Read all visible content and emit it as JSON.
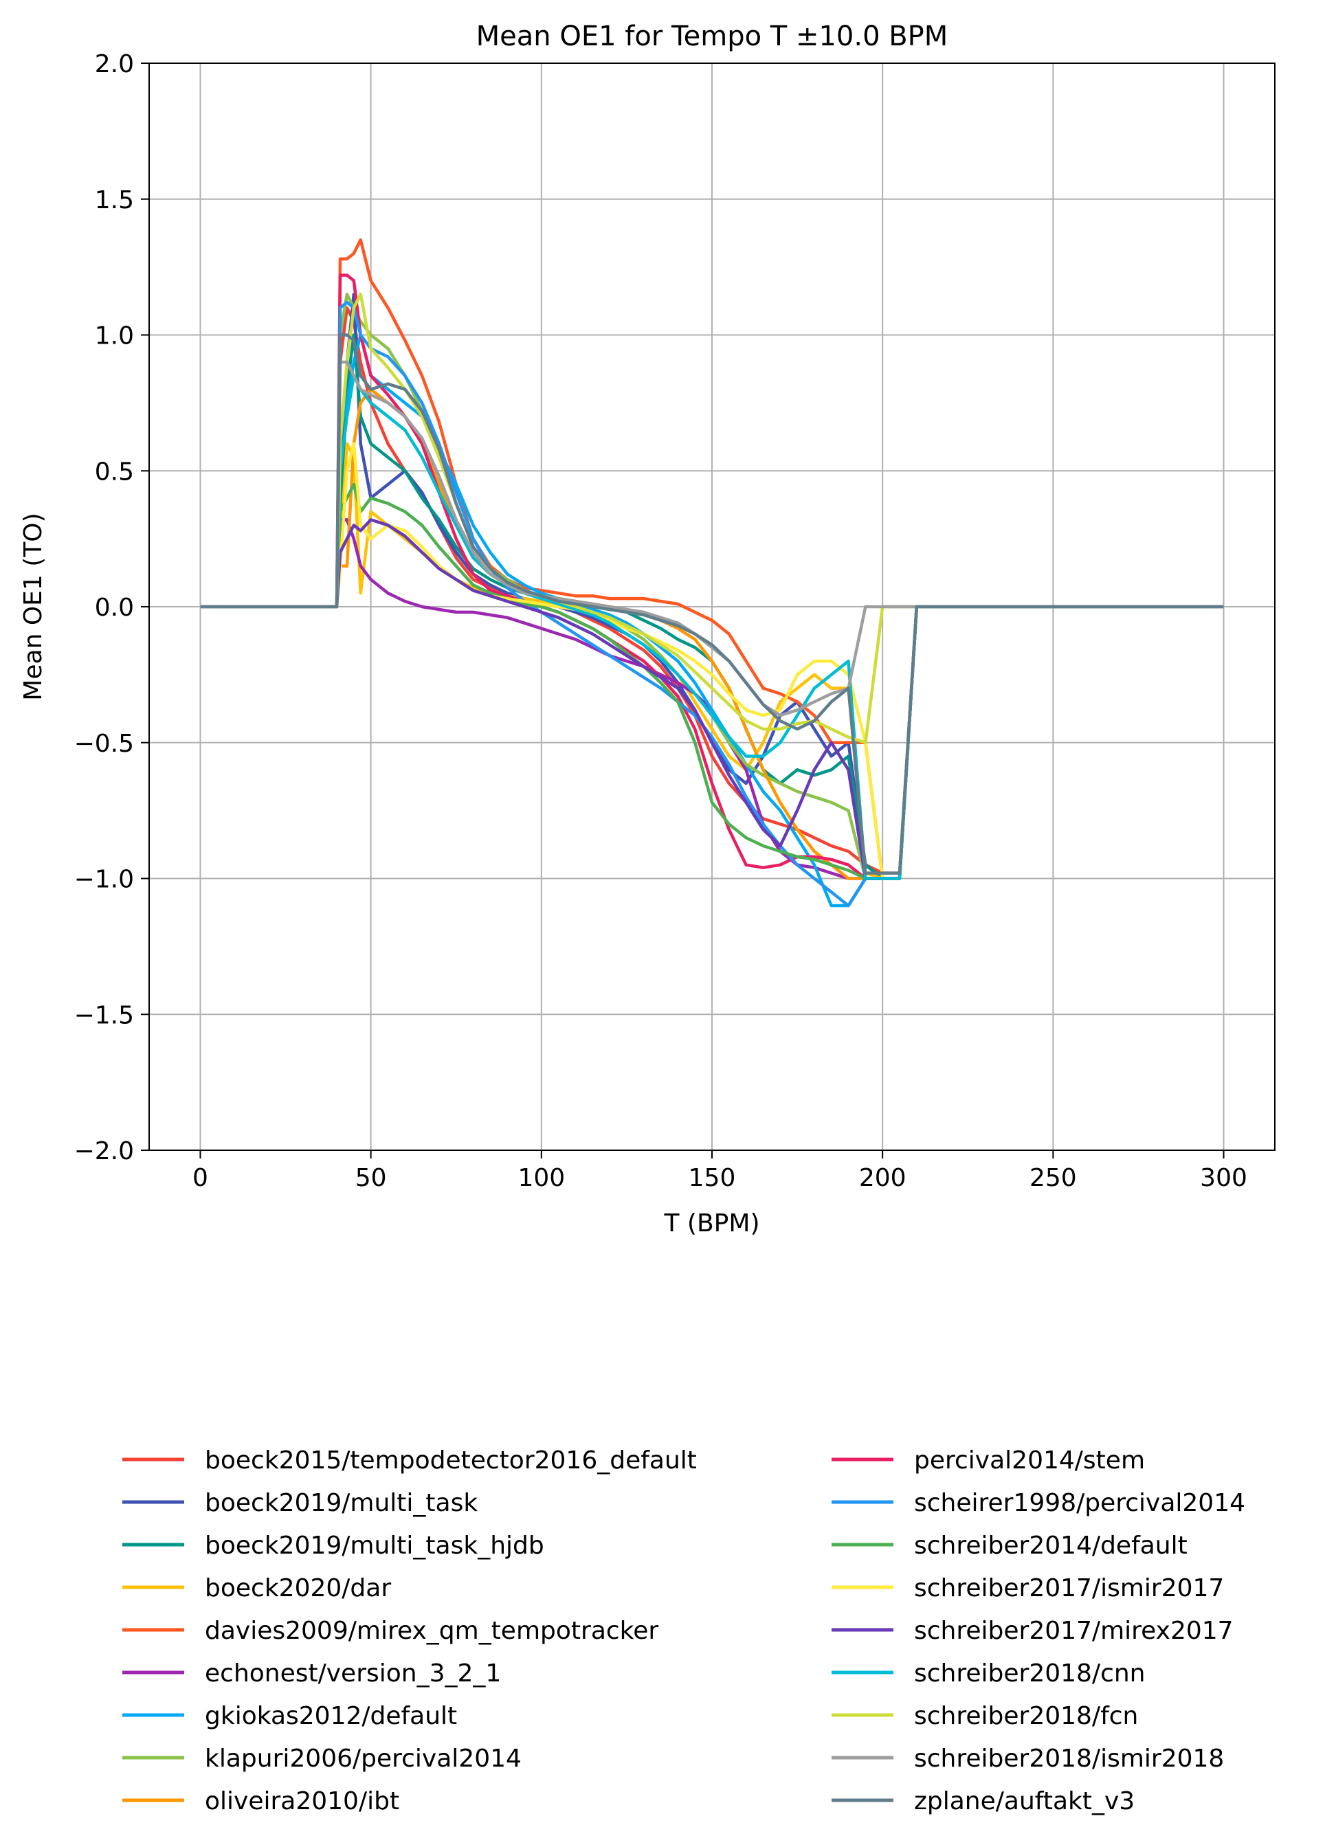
{
  "chart_data": {
    "type": "line",
    "title": "Mean OE1 for Tempo T ±10.0 BPM",
    "xlabel": "T (BPM)",
    "ylabel": "Mean OE1 (TO)",
    "xlim": [
      -15,
      315
    ],
    "ylim": [
      -2.0,
      2.0
    ],
    "xticks": [
      0,
      50,
      100,
      150,
      200,
      250,
      300
    ],
    "xtick_labels": [
      "0",
      "50",
      "100",
      "150",
      "200",
      "250",
      "300"
    ],
    "yticks": [
      2.0,
      1.5,
      1.0,
      0.5,
      0.0,
      -0.5,
      -1.0,
      -1.5,
      -2.0
    ],
    "ytick_labels": [
      "2.0",
      "1.5",
      "1.0",
      "0.5",
      "0.0",
      "−0.5",
      "−1.0",
      "−1.5",
      "−2.0"
    ],
    "grid": true,
    "legend_position": "below plot, two columns",
    "x": [
      0,
      40,
      41,
      43,
      45,
      47,
      50,
      55,
      60,
      65,
      70,
      75,
      80,
      85,
      90,
      95,
      100,
      105,
      110,
      115,
      120,
      125,
      130,
      135,
      140,
      145,
      150,
      155,
      160,
      165,
      170,
      175,
      180,
      185,
      190,
      195,
      200,
      205,
      210,
      250,
      300
    ],
    "series": [
      {
        "name": "boeck2015/tempodetector2016_default",
        "color": "#f44336",
        "values": [
          0,
          0,
          0.9,
          1.1,
          1.05,
          0.9,
          0.75,
          0.6,
          0.5,
          0.42,
          0.3,
          0.18,
          0.1,
          0.07,
          0.04,
          0.02,
          0.01,
          0.0,
          -0.02,
          -0.05,
          -0.08,
          -0.12,
          -0.16,
          -0.22,
          -0.3,
          -0.4,
          -0.55,
          -0.65,
          -0.72,
          -0.78,
          -0.8,
          -0.82,
          -0.85,
          -0.88,
          -0.9,
          -0.95,
          -0.98,
          -0.98,
          0,
          0,
          0
        ]
      },
      {
        "name": "boeck2019/multi_task",
        "color": "#3f51b5",
        "values": [
          0,
          0,
          0.4,
          0.9,
          1.15,
          0.6,
          0.4,
          0.45,
          0.5,
          0.42,
          0.3,
          0.2,
          0.12,
          0.08,
          0.05,
          0.03,
          0.02,
          0.0,
          -0.02,
          -0.04,
          -0.07,
          -0.1,
          -0.14,
          -0.2,
          -0.28,
          -0.38,
          -0.5,
          -0.6,
          -0.65,
          -0.55,
          -0.4,
          -0.35,
          -0.45,
          -0.55,
          -0.5,
          -0.95,
          -1.0,
          -1.0,
          0,
          0,
          0
        ]
      },
      {
        "name": "boeck2019/multi_task_hjdb",
        "color": "#009688",
        "values": [
          0,
          0,
          0.3,
          0.8,
          1.0,
          0.7,
          0.6,
          0.55,
          0.5,
          0.4,
          0.32,
          0.22,
          0.14,
          0.1,
          0.07,
          0.05,
          0.04,
          0.03,
          0.02,
          0.01,
          0.0,
          -0.02,
          -0.05,
          -0.08,
          -0.12,
          -0.15,
          -0.2,
          -0.3,
          -0.45,
          -0.6,
          -0.65,
          -0.6,
          -0.62,
          -0.6,
          -0.55,
          -0.95,
          -1.0,
          -1.0,
          0,
          0,
          0
        ]
      },
      {
        "name": "boeck2020/dar",
        "color": "#ffc107",
        "values": [
          0,
          0,
          0.2,
          0.6,
          0.55,
          0.05,
          0.35,
          0.3,
          0.25,
          0.2,
          0.15,
          0.1,
          0.07,
          0.05,
          0.04,
          0.03,
          0.02,
          0.01,
          0.0,
          -0.02,
          -0.05,
          -0.08,
          -0.12,
          -0.18,
          -0.25,
          -0.35,
          -0.45,
          -0.55,
          -0.6,
          -0.5,
          -0.35,
          -0.3,
          -0.25,
          -0.3,
          -0.3,
          -0.98,
          -1.0,
          -1.0,
          0,
          0,
          0
        ]
      },
      {
        "name": "davies2009/mirex_qm_tempotracker",
        "color": "#ff5722",
        "values": [
          0,
          0,
          1.28,
          1.28,
          1.3,
          1.35,
          1.2,
          1.1,
          0.98,
          0.85,
          0.68,
          0.45,
          0.25,
          0.15,
          0.1,
          0.07,
          0.06,
          0.05,
          0.04,
          0.04,
          0.03,
          0.03,
          0.03,
          0.02,
          0.01,
          -0.02,
          -0.05,
          -0.1,
          -0.2,
          -0.3,
          -0.32,
          -0.35,
          -0.4,
          -0.5,
          -0.5,
          -0.5,
          -1.0,
          -1.0,
          0,
          0,
          0
        ]
      },
      {
        "name": "echonest/version_3_2_1",
        "color": "#9c27b0",
        "values": [
          0,
          0,
          0.32,
          0.32,
          0.25,
          0.15,
          0.1,
          0.05,
          0.02,
          0.0,
          -0.01,
          -0.02,
          -0.02,
          -0.03,
          -0.04,
          -0.06,
          -0.08,
          -0.1,
          -0.12,
          -0.15,
          -0.18,
          -0.2,
          -0.22,
          -0.25,
          -0.28,
          -0.32,
          -0.38,
          -0.5,
          -0.6,
          -0.8,
          -0.9,
          -0.95,
          -0.96,
          -0.98,
          -1.0,
          -1.0,
          -1.0,
          -1.0,
          0,
          0,
          0
        ]
      },
      {
        "name": "gkiokas2012/default",
        "color": "#03a9f4",
        "values": [
          0,
          0,
          0.65,
          0.75,
          0.9,
          1.0,
          0.85,
          0.8,
          0.75,
          0.7,
          0.58,
          0.45,
          0.3,
          0.2,
          0.12,
          0.08,
          0.05,
          0.03,
          0.01,
          -0.01,
          -0.03,
          -0.06,
          -0.1,
          -0.15,
          -0.2,
          -0.28,
          -0.38,
          -0.48,
          -0.58,
          -0.68,
          -0.75,
          -0.85,
          -0.95,
          -1.1,
          -1.1,
          -1.0,
          -1.0,
          -1.0,
          0,
          0,
          0
        ]
      },
      {
        "name": "klapuri2006/percival2014",
        "color": "#8bc34a",
        "values": [
          0,
          0,
          1.0,
          1.15,
          1.1,
          1.05,
          1.0,
          0.95,
          0.85,
          0.72,
          0.55,
          0.38,
          0.22,
          0.14,
          0.1,
          0.06,
          0.04,
          0.02,
          0.0,
          -0.02,
          -0.05,
          -0.08,
          -0.12,
          -0.18,
          -0.25,
          -0.32,
          -0.4,
          -0.5,
          -0.58,
          -0.62,
          -0.65,
          -0.68,
          -0.7,
          -0.72,
          -0.75,
          -1.0,
          -1.0,
          -1.0,
          0,
          0,
          0
        ]
      },
      {
        "name": "oliveira2010/ibt",
        "color": "#ff9800",
        "values": [
          0,
          0,
          0.15,
          0.15,
          0.6,
          0.75,
          0.8,
          0.75,
          0.7,
          0.6,
          0.45,
          0.3,
          0.18,
          0.12,
          0.08,
          0.05,
          0.04,
          0.03,
          0.02,
          0.01,
          0.0,
          -0.01,
          -0.03,
          -0.05,
          -0.08,
          -0.12,
          -0.2,
          -0.3,
          -0.45,
          -0.6,
          -0.72,
          -0.82,
          -0.9,
          -0.95,
          -1.0,
          -1.0,
          -1.0,
          -1.0,
          0,
          0,
          0
        ]
      },
      {
        "name": "percival2014/stem",
        "color": "#e91e63",
        "values": [
          0,
          0,
          1.22,
          1.22,
          1.2,
          1.0,
          0.85,
          0.78,
          0.7,
          0.6,
          0.42,
          0.25,
          0.12,
          0.06,
          0.04,
          0.02,
          0.0,
          -0.02,
          -0.05,
          -0.08,
          -0.12,
          -0.16,
          -0.2,
          -0.26,
          -0.33,
          -0.45,
          -0.65,
          -0.82,
          -0.95,
          -0.96,
          -0.95,
          -0.92,
          -0.92,
          -0.93,
          -0.95,
          -1.0,
          -1.0,
          -1.0,
          0,
          0,
          0
        ]
      },
      {
        "name": "scheirer1998/percival2014",
        "color": "#2196f3",
        "values": [
          0,
          0,
          1.1,
          1.12,
          1.1,
          1.0,
          0.95,
          0.92,
          0.85,
          0.75,
          0.6,
          0.42,
          0.25,
          0.14,
          0.07,
          0.02,
          -0.02,
          -0.06,
          -0.1,
          -0.14,
          -0.18,
          -0.22,
          -0.26,
          -0.3,
          -0.35,
          -0.4,
          -0.48,
          -0.58,
          -0.7,
          -0.8,
          -0.88,
          -0.95,
          -1.0,
          -1.05,
          -1.1,
          -1.0,
          -1.0,
          -1.0,
          0,
          0,
          0
        ]
      },
      {
        "name": "schreiber2014/default",
        "color": "#4caf50",
        "values": [
          0,
          0,
          0.35,
          0.4,
          0.45,
          0.35,
          0.4,
          0.38,
          0.35,
          0.3,
          0.22,
          0.15,
          0.08,
          0.05,
          0.03,
          0.01,
          0.0,
          -0.02,
          -0.05,
          -0.08,
          -0.12,
          -0.17,
          -0.22,
          -0.28,
          -0.35,
          -0.5,
          -0.72,
          -0.8,
          -0.85,
          -0.88,
          -0.9,
          -0.92,
          -0.93,
          -0.95,
          -0.97,
          -1.0,
          -1.0,
          -1.0,
          0,
          0,
          0
        ]
      },
      {
        "name": "schreiber2017/ismir2017",
        "color": "#ffeb3b",
        "values": [
          0,
          0,
          0.15,
          0.5,
          0.6,
          0.3,
          0.25,
          0.3,
          0.28,
          0.22,
          0.15,
          0.1,
          0.06,
          0.04,
          0.03,
          0.02,
          0.01,
          0.0,
          -0.01,
          -0.03,
          -0.05,
          -0.08,
          -0.1,
          -0.13,
          -0.16,
          -0.2,
          -0.25,
          -0.32,
          -0.38,
          -0.4,
          -0.38,
          -0.25,
          -0.2,
          -0.2,
          -0.25,
          -0.5,
          -1.0,
          -1.0,
          0,
          0,
          0
        ]
      },
      {
        "name": "schreiber2017/mirex2017",
        "color": "#673ab7",
        "values": [
          0,
          0,
          0.2,
          0.25,
          0.3,
          0.28,
          0.32,
          0.3,
          0.26,
          0.2,
          0.14,
          0.1,
          0.06,
          0.04,
          0.02,
          0.0,
          -0.02,
          -0.04,
          -0.07,
          -0.1,
          -0.14,
          -0.18,
          -0.22,
          -0.26,
          -0.3,
          -0.38,
          -0.5,
          -0.62,
          -0.72,
          -0.82,
          -0.88,
          -0.75,
          -0.6,
          -0.5,
          -0.6,
          -1.0,
          -1.0,
          -1.0,
          0,
          0,
          0
        ]
      },
      {
        "name": "schreiber2018/cnn",
        "color": "#00bcd4",
        "values": [
          0,
          0,
          0.5,
          0.7,
          0.85,
          0.8,
          0.75,
          0.7,
          0.65,
          0.55,
          0.42,
          0.3,
          0.18,
          0.12,
          0.08,
          0.05,
          0.03,
          0.01,
          -0.01,
          -0.03,
          -0.06,
          -0.1,
          -0.14,
          -0.19,
          -0.25,
          -0.32,
          -0.4,
          -0.48,
          -0.55,
          -0.55,
          -0.5,
          -0.4,
          -0.3,
          -0.25,
          -0.2,
          -1.0,
          -1.0,
          -1.0,
          0,
          0,
          0
        ]
      },
      {
        "name": "schreiber2018/fcn",
        "color": "#cddc39",
        "values": [
          0,
          0,
          0.6,
          0.9,
          1.1,
          1.15,
          0.95,
          0.88,
          0.8,
          0.7,
          0.55,
          0.38,
          0.22,
          0.14,
          0.09,
          0.06,
          0.04,
          0.02,
          0.0,
          -0.02,
          -0.04,
          -0.07,
          -0.1,
          -0.14,
          -0.18,
          -0.24,
          -0.3,
          -0.36,
          -0.42,
          -0.45,
          -0.45,
          -0.43,
          -0.42,
          -0.45,
          -0.48,
          -0.5,
          0.0,
          0.0,
          0,
          0,
          0
        ]
      },
      {
        "name": "schreiber2018/ismir2018",
        "color": "#9e9e9e",
        "values": [
          0,
          0,
          0.9,
          0.9,
          0.85,
          0.8,
          0.78,
          0.75,
          0.7,
          0.62,
          0.48,
          0.32,
          0.2,
          0.12,
          0.08,
          0.05,
          0.04,
          0.03,
          0.02,
          0.01,
          0.0,
          -0.01,
          -0.02,
          -0.04,
          -0.06,
          -0.1,
          -0.15,
          -0.2,
          -0.28,
          -0.36,
          -0.4,
          -0.38,
          -0.35,
          -0.32,
          -0.3,
          0.0,
          0.0,
          0.0,
          0,
          0,
          0
        ]
      },
      {
        "name": "zplane/auftakt_v3",
        "color": "#607d8b",
        "values": [
          0,
          0,
          1.0,
          1.0,
          0.98,
          0.85,
          0.8,
          0.82,
          0.8,
          0.72,
          0.58,
          0.38,
          0.22,
          0.14,
          0.09,
          0.06,
          0.04,
          0.02,
          0.01,
          0.0,
          -0.01,
          -0.02,
          -0.03,
          -0.05,
          -0.07,
          -0.1,
          -0.14,
          -0.2,
          -0.28,
          -0.36,
          -0.42,
          -0.45,
          -0.42,
          -0.35,
          -0.3,
          -0.98,
          -0.98,
          -0.98,
          0,
          0,
          0
        ]
      }
    ]
  }
}
